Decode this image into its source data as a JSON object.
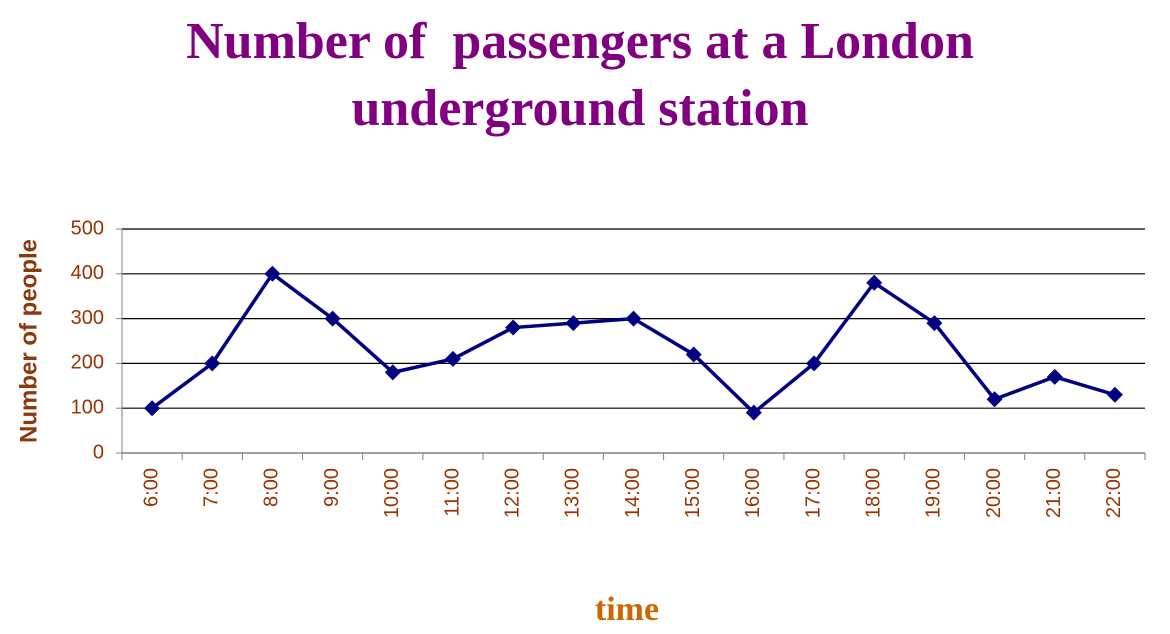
{
  "chart_data": {
    "type": "line",
    "title": "Number of  passengers at a London underground station",
    "x_label": "time",
    "y_label": "Number of people",
    "categories": [
      "6:00",
      "7:00",
      "8:00",
      "9:00",
      "10:00",
      "11:00",
      "12:00",
      "13:00",
      "14:00",
      "15:00",
      "16:00",
      "17:00",
      "18:00",
      "19:00",
      "20:00",
      "21:00",
      "22:00"
    ],
    "values": [
      100,
      200,
      400,
      300,
      180,
      210,
      280,
      290,
      300,
      220,
      90,
      200,
      380,
      290,
      120,
      170,
      130
    ],
    "color": "#000080",
    "ylim": [
      0,
      500
    ],
    "yticks": [
      0,
      100,
      200,
      300,
      400,
      500
    ],
    "grid": true
  }
}
